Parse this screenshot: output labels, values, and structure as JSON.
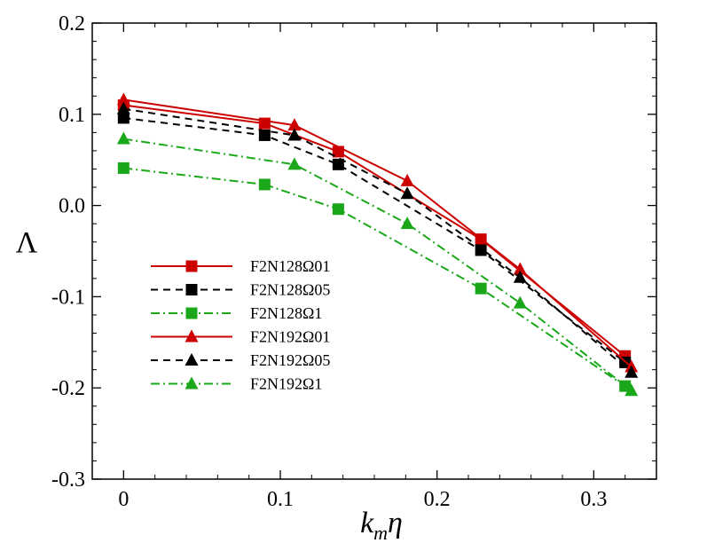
{
  "chart_data": {
    "type": "line",
    "xlabel": "k",
    "xlabel_sub": "m",
    "xlabel_tail": "η",
    "ylabel": "Λ",
    "xlim": [
      -0.02,
      0.34
    ],
    "ylim": [
      -0.3,
      0.2
    ],
    "x_ticks": [
      0,
      0.1,
      0.2,
      0.3
    ],
    "x_tick_labels": [
      "0",
      "0.1",
      "0.2",
      "0.3"
    ],
    "y_ticks": [
      -0.3,
      -0.2,
      -0.1,
      0.0,
      0.1,
      0.2
    ],
    "y_tick_labels": [
      "-0.3",
      "-0.2",
      "-0.1",
      "0.0",
      "0.1",
      "0.2"
    ],
    "legend_position": "center-left",
    "series": [
      {
        "name": "F2N128Ω01",
        "color": "#cc0000",
        "line": "solid",
        "marker": "square",
        "x": [
          0,
          0.09,
          0.137,
          0.228,
          0.32
        ],
        "y": [
          0.11,
          0.09,
          0.059,
          -0.037,
          -0.165
        ]
      },
      {
        "name": "F2N128Ω05",
        "color": "#000000",
        "line": "dashed",
        "marker": "square",
        "x": [
          0,
          0.09,
          0.137,
          0.228,
          0.32
        ],
        "y": [
          0.096,
          0.077,
          0.045,
          -0.049,
          -0.172
        ]
      },
      {
        "name": "F2N128Ω1",
        "color": "#1aa81a",
        "line": "dashdot",
        "marker": "square",
        "x": [
          0,
          0.09,
          0.137,
          0.228,
          0.32
        ],
        "y": [
          0.041,
          0.023,
          -0.004,
          -0.091,
          -0.198
        ]
      },
      {
        "name": "F2N192Ω01",
        "color": "#cc0000",
        "line": "solid",
        "marker": "triangle",
        "x": [
          0,
          0.109,
          0.181,
          0.253,
          0.324
        ],
        "y": [
          0.116,
          0.088,
          0.027,
          -0.07,
          -0.177
        ]
      },
      {
        "name": "F2N192Ω05",
        "color": "#000000",
        "line": "dashed",
        "marker": "triangle",
        "x": [
          0,
          0.109,
          0.181,
          0.253,
          0.324
        ],
        "y": [
          0.106,
          0.077,
          0.013,
          -0.079,
          -0.183
        ]
      },
      {
        "name": "F2N192Ω1",
        "color": "#1aa81a",
        "line": "dashdot",
        "marker": "triangle",
        "x": [
          0,
          0.109,
          0.181,
          0.253,
          0.324
        ],
        "y": [
          0.073,
          0.045,
          -0.02,
          -0.107,
          -0.203
        ]
      }
    ]
  }
}
